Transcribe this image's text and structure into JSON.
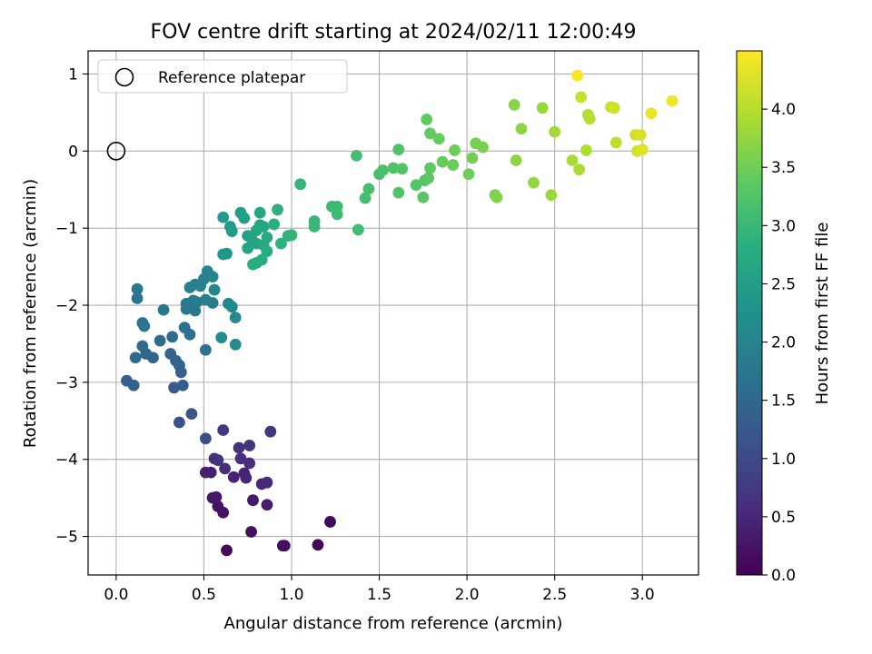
{
  "chart_data": {
    "type": "scatter",
    "title": "FOV centre drift starting at 2024/02/11 12:00:49",
    "xlabel": "Angular distance from reference (arcmin)",
    "ylabel": "Rotation from reference (arcmin)",
    "xlim": [
      -0.16,
      3.32
    ],
    "ylim": [
      -5.5,
      1.3
    ],
    "xticks": [
      0.0,
      0.5,
      1.0,
      1.5,
      2.0,
      2.5,
      3.0
    ],
    "yticks": [
      1,
      0,
      -1,
      -2,
      -3,
      -4,
      -5
    ],
    "xtick_labels": [
      "0.0",
      "0.5",
      "1.0",
      "1.5",
      "2.0",
      "2.5",
      "3.0"
    ],
    "ytick_labels": [
      "1",
      "0",
      "−1",
      "−2",
      "−3",
      "−4",
      "−5"
    ],
    "grid": true,
    "legend": {
      "placement": "top-left",
      "entries": [
        "Reference platepar"
      ]
    },
    "reference_point": {
      "x": 0.0,
      "y": 0.0,
      "label": "Reference platepar"
    },
    "colorbar": {
      "label": "Hours from first FF file",
      "min": 0.0,
      "max": 4.5,
      "ticks": [
        0.0,
        0.5,
        1.0,
        1.5,
        2.0,
        2.5,
        3.0,
        3.5,
        4.0
      ],
      "tick_labels": [
        "0.0",
        "0.5",
        "1.0",
        "1.5",
        "2.0",
        "2.5",
        "3.0",
        "3.5",
        "4.0"
      ],
      "colormap": "viridis"
    },
    "points": [
      {
        "x": 0.95,
        "y": -5.12,
        "t": 0.05
      },
      {
        "x": 1.15,
        "y": -5.11,
        "t": 0.07
      },
      {
        "x": 1.22,
        "y": -4.81,
        "t": 0.1
      },
      {
        "x": 0.63,
        "y": -5.18,
        "t": 0.12
      },
      {
        "x": 0.96,
        "y": -5.12,
        "t": 0.15
      },
      {
        "x": 0.77,
        "y": -4.94,
        "t": 0.18
      },
      {
        "x": 0.61,
        "y": -4.69,
        "t": 0.2
      },
      {
        "x": 0.58,
        "y": -4.61,
        "t": 0.23
      },
      {
        "x": 0.55,
        "y": -4.5,
        "t": 0.26
      },
      {
        "x": 0.57,
        "y": -4.49,
        "t": 0.3
      },
      {
        "x": 0.78,
        "y": -4.53,
        "t": 0.32
      },
      {
        "x": 0.86,
        "y": -4.59,
        "t": 0.35
      },
      {
        "x": 0.51,
        "y": -4.17,
        "t": 0.38
      },
      {
        "x": 0.54,
        "y": -4.17,
        "t": 0.4
      },
      {
        "x": 0.67,
        "y": -4.23,
        "t": 0.43
      },
      {
        "x": 0.73,
        "y": -4.18,
        "t": 0.45
      },
      {
        "x": 0.74,
        "y": -4.24,
        "t": 0.48
      },
      {
        "x": 0.83,
        "y": -4.32,
        "t": 0.5
      },
      {
        "x": 0.86,
        "y": -4.3,
        "t": 0.53
      },
      {
        "x": 0.62,
        "y": -4.12,
        "t": 0.55
      },
      {
        "x": 0.76,
        "y": -4.05,
        "t": 0.58
      },
      {
        "x": 0.71,
        "y": -3.99,
        "t": 0.6
      },
      {
        "x": 0.56,
        "y": -3.99,
        "t": 0.62
      },
      {
        "x": 0.58,
        "y": -4.01,
        "t": 0.64
      },
      {
        "x": 0.7,
        "y": -3.85,
        "t": 0.66
      },
      {
        "x": 0.76,
        "y": -3.82,
        "t": 0.68
      },
      {
        "x": 0.61,
        "y": -3.62,
        "t": 0.7
      },
      {
        "x": 0.88,
        "y": -3.64,
        "t": 0.72
      },
      {
        "x": 0.51,
        "y": -3.73,
        "t": 1.05
      },
      {
        "x": 0.36,
        "y": -3.52,
        "t": 1.15
      },
      {
        "x": 0.43,
        "y": -3.41,
        "t": 1.2
      },
      {
        "x": 0.33,
        "y": -3.07,
        "t": 1.3
      },
      {
        "x": 0.38,
        "y": -3.04,
        "t": 1.32
      },
      {
        "x": 0.06,
        "y": -2.98,
        "t": 1.35
      },
      {
        "x": 0.1,
        "y": -3.04,
        "t": 1.38
      },
      {
        "x": 0.37,
        "y": -2.87,
        "t": 1.4
      },
      {
        "x": 0.36,
        "y": -2.78,
        "t": 1.42
      },
      {
        "x": 0.34,
        "y": -2.72,
        "t": 1.45
      },
      {
        "x": 0.31,
        "y": -2.63,
        "t": 1.48
      },
      {
        "x": 0.21,
        "y": -2.68,
        "t": 1.5
      },
      {
        "x": 0.17,
        "y": -2.63,
        "t": 1.52
      },
      {
        "x": 0.11,
        "y": -2.68,
        "t": 1.55
      },
      {
        "x": 0.15,
        "y": -2.53,
        "t": 1.58
      },
      {
        "x": 0.25,
        "y": -2.46,
        "t": 1.6
      },
      {
        "x": 0.32,
        "y": -2.41,
        "t": 1.62
      },
      {
        "x": 0.42,
        "y": -2.38,
        "t": 1.64
      },
      {
        "x": 0.39,
        "y": -2.29,
        "t": 1.66
      },
      {
        "x": 0.51,
        "y": -2.58,
        "t": 1.68
      },
      {
        "x": 0.15,
        "y": -2.23,
        "t": 1.7
      },
      {
        "x": 0.16,
        "y": -2.27,
        "t": 1.72
      },
      {
        "x": 0.12,
        "y": -1.91,
        "t": 1.74
      },
      {
        "x": 0.12,
        "y": -1.79,
        "t": 1.76
      },
      {
        "x": 0.27,
        "y": -2.06,
        "t": 1.78
      },
      {
        "x": 0.4,
        "y": -2.05,
        "t": 1.8
      },
      {
        "x": 0.45,
        "y": -2.07,
        "t": 1.82
      },
      {
        "x": 0.4,
        "y": -1.98,
        "t": 1.84
      },
      {
        "x": 0.44,
        "y": -1.94,
        "t": 1.86
      },
      {
        "x": 0.46,
        "y": -1.96,
        "t": 1.88
      },
      {
        "x": 0.51,
        "y": -1.93,
        "t": 1.9
      },
      {
        "x": 0.55,
        "y": -1.97,
        "t": 1.92
      },
      {
        "x": 0.42,
        "y": -1.77,
        "t": 1.94
      },
      {
        "x": 0.45,
        "y": -1.73,
        "t": 1.96
      },
      {
        "x": 0.48,
        "y": -1.75,
        "t": 1.98
      },
      {
        "x": 0.5,
        "y": -1.66,
        "t": 2.0
      },
      {
        "x": 0.52,
        "y": -1.56,
        "t": 2.02
      },
      {
        "x": 0.55,
        "y": -1.63,
        "t": 2.04
      },
      {
        "x": 0.56,
        "y": -1.8,
        "t": 2.06
      },
      {
        "x": 0.64,
        "y": -1.98,
        "t": 2.08
      },
      {
        "x": 0.66,
        "y": -2.02,
        "t": 2.1
      },
      {
        "x": 0.68,
        "y": -2.16,
        "t": 2.12
      },
      {
        "x": 0.6,
        "y": -2.42,
        "t": 2.14
      },
      {
        "x": 0.68,
        "y": -2.51,
        "t": 2.16
      },
      {
        "x": 0.61,
        "y": -1.34,
        "t": 2.3
      },
      {
        "x": 0.63,
        "y": -1.33,
        "t": 2.35
      },
      {
        "x": 0.61,
        "y": -0.86,
        "t": 2.4
      },
      {
        "x": 0.65,
        "y": -0.98,
        "t": 2.45
      },
      {
        "x": 0.66,
        "y": -1.04,
        "t": 2.48
      },
      {
        "x": 0.71,
        "y": -0.8,
        "t": 2.5
      },
      {
        "x": 0.73,
        "y": -0.87,
        "t": 2.52
      },
      {
        "x": 0.75,
        "y": -1.1,
        "t": 2.55
      },
      {
        "x": 0.77,
        "y": -1.13,
        "t": 2.57
      },
      {
        "x": 0.75,
        "y": -1.26,
        "t": 2.6
      },
      {
        "x": 0.8,
        "y": -1.2,
        "t": 2.62
      },
      {
        "x": 0.8,
        "y": -1.03,
        "t": 2.64
      },
      {
        "x": 0.82,
        "y": -0.96,
        "t": 2.66
      },
      {
        "x": 0.84,
        "y": -0.98,
        "t": 2.68
      },
      {
        "x": 0.82,
        "y": -0.8,
        "t": 2.7
      },
      {
        "x": 0.86,
        "y": -1.12,
        "t": 2.72
      },
      {
        "x": 0.84,
        "y": -1.22,
        "t": 2.74
      },
      {
        "x": 0.86,
        "y": -1.3,
        "t": 2.76
      },
      {
        "x": 0.83,
        "y": -1.41,
        "t": 2.78
      },
      {
        "x": 0.8,
        "y": -1.45,
        "t": 2.8
      },
      {
        "x": 0.78,
        "y": -1.47,
        "t": 2.82
      },
      {
        "x": 0.9,
        "y": -0.95,
        "t": 2.84
      },
      {
        "x": 0.92,
        "y": -0.76,
        "t": 2.86
      },
      {
        "x": 0.94,
        "y": -1.2,
        "t": 2.88
      },
      {
        "x": 0.98,
        "y": -1.1,
        "t": 2.9
      },
      {
        "x": 1.0,
        "y": -1.09,
        "t": 2.92
      },
      {
        "x": 1.05,
        "y": -0.43,
        "t": 2.95
      },
      {
        "x": 1.13,
        "y": -0.91,
        "t": 2.98
      },
      {
        "x": 1.13,
        "y": -0.98,
        "t": 3.0
      },
      {
        "x": 1.23,
        "y": -0.72,
        "t": 3.02
      },
      {
        "x": 1.26,
        "y": -0.72,
        "t": 3.04
      },
      {
        "x": 1.26,
        "y": -0.82,
        "t": 3.06
      },
      {
        "x": 1.38,
        "y": -1.02,
        "t": 3.08
      },
      {
        "x": 1.37,
        "y": -0.06,
        "t": 3.1
      },
      {
        "x": 1.42,
        "y": -0.61,
        "t": 3.12
      },
      {
        "x": 1.44,
        "y": -0.49,
        "t": 3.14
      },
      {
        "x": 1.5,
        "y": -0.3,
        "t": 3.16
      },
      {
        "x": 1.52,
        "y": -0.25,
        "t": 3.18
      },
      {
        "x": 1.58,
        "y": -0.22,
        "t": 3.2
      },
      {
        "x": 1.61,
        "y": 0.02,
        "t": 3.22
      },
      {
        "x": 1.61,
        "y": -0.54,
        "t": 3.24
      },
      {
        "x": 1.63,
        "y": -0.23,
        "t": 3.26
      },
      {
        "x": 1.71,
        "y": -0.44,
        "t": 3.28
      },
      {
        "x": 1.75,
        "y": -0.6,
        "t": 3.3
      },
      {
        "x": 1.76,
        "y": -0.38,
        "t": 3.32
      },
      {
        "x": 1.78,
        "y": -0.35,
        "t": 3.34
      },
      {
        "x": 1.79,
        "y": -0.22,
        "t": 3.36
      },
      {
        "x": 1.77,
        "y": 0.41,
        "t": 3.38
      },
      {
        "x": 1.79,
        "y": 0.23,
        "t": 3.4
      },
      {
        "x": 1.84,
        "y": 0.16,
        "t": 3.42
      },
      {
        "x": 1.86,
        "y": -0.14,
        "t": 3.44
      },
      {
        "x": 1.92,
        "y": -0.18,
        "t": 3.46
      },
      {
        "x": 1.93,
        "y": 0.01,
        "t": 3.48
      },
      {
        "x": 2.01,
        "y": -0.3,
        "t": 3.5
      },
      {
        "x": 2.03,
        "y": -0.09,
        "t": 3.52
      },
      {
        "x": 2.05,
        "y": 0.1,
        "t": 3.54
      },
      {
        "x": 2.09,
        "y": 0.05,
        "t": 3.56
      },
      {
        "x": 2.16,
        "y": -0.57,
        "t": 3.6
      },
      {
        "x": 2.17,
        "y": -0.6,
        "t": 3.62
      },
      {
        "x": 2.27,
        "y": 0.6,
        "t": 3.68
      },
      {
        "x": 2.28,
        "y": -0.12,
        "t": 3.7
      },
      {
        "x": 2.31,
        "y": 0.29,
        "t": 3.72
      },
      {
        "x": 2.38,
        "y": -0.41,
        "t": 3.76
      },
      {
        "x": 2.43,
        "y": 0.56,
        "t": 3.8
      },
      {
        "x": 2.48,
        "y": -0.57,
        "t": 3.82
      },
      {
        "x": 2.5,
        "y": 0.25,
        "t": 3.85
      },
      {
        "x": 2.6,
        "y": -0.12,
        "t": 3.9
      },
      {
        "x": 2.64,
        "y": -0.24,
        "t": 3.93
      },
      {
        "x": 2.68,
        "y": 0.01,
        "t": 3.95
      },
      {
        "x": 2.69,
        "y": 0.47,
        "t": 3.98
      },
      {
        "x": 2.7,
        "y": 0.42,
        "t": 4.0
      },
      {
        "x": 2.85,
        "y": 0.11,
        "t": 4.05
      },
      {
        "x": 2.65,
        "y": 0.7,
        "t": 4.1
      },
      {
        "x": 2.82,
        "y": 0.57,
        "t": 4.15
      },
      {
        "x": 2.84,
        "y": 0.56,
        "t": 4.18
      },
      {
        "x": 2.96,
        "y": 0.21,
        "t": 4.2
      },
      {
        "x": 2.97,
        "y": 0.0,
        "t": 4.22
      },
      {
        "x": 2.99,
        "y": 0.21,
        "t": 4.25
      },
      {
        "x": 3.0,
        "y": 0.02,
        "t": 4.28
      },
      {
        "x": 3.05,
        "y": 0.49,
        "t": 4.35
      },
      {
        "x": 3.17,
        "y": 0.65,
        "t": 4.4
      },
      {
        "x": 2.63,
        "y": 0.98,
        "t": 4.45
      }
    ]
  }
}
